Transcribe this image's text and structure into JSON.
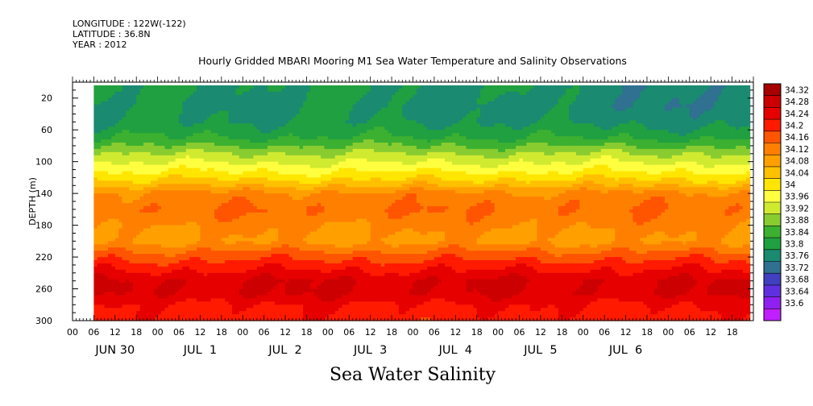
{
  "header": {
    "longitude": "LONGITUDE : 122W(-122)",
    "latitude": "LATITUDE : 36.8N",
    "year": "YEAR : 2012"
  },
  "chart_data": {
    "type": "heatmap",
    "title": "Hourly Gridded MBARI Mooring M1 Sea Water Temperature and Salinity Observations",
    "bottom_title": "Sea Water Salinity",
    "ylabel": "DEPTH (m)",
    "y_range": [
      0,
      300
    ],
    "y_ticks": [
      20,
      60,
      100,
      140,
      180,
      220,
      260,
      300
    ],
    "x_hour_ticks": [
      "00",
      "06",
      "12",
      "18",
      "00",
      "06",
      "12",
      "18",
      "00",
      "06",
      "12",
      "18",
      "00",
      "06",
      "12",
      "18",
      "00",
      "06",
      "12",
      "18",
      "00",
      "06",
      "12",
      "18",
      "00",
      "06",
      "12",
      "18",
      "00",
      "06",
      "12",
      "18"
    ],
    "x_day_labels": [
      "JUN 30",
      "JUL  1",
      "JUL  2",
      "JUL  3",
      "JUL  4",
      "JUL  5",
      "JUL  6"
    ],
    "data_start_hour": 6,
    "data_end_hour": 191,
    "colorbar": {
      "levels": [
        34.32,
        34.28,
        34.24,
        34.2,
        34.16,
        34.12,
        34.08,
        34.04,
        34,
        33.96,
        33.92,
        33.88,
        33.84,
        33.8,
        33.76,
        33.72,
        33.68,
        33.64,
        33.6
      ],
      "colors": [
        "#a60000",
        "#cc0000",
        "#e60000",
        "#ff1a00",
        "#ff5500",
        "#ff8000",
        "#ffa000",
        "#ffc000",
        "#ffe600",
        "#ffff40",
        "#d0ea30",
        "#88cc30",
        "#3cb030",
        "#20a040",
        "#1a8a70",
        "#307090",
        "#4040c0",
        "#6030e0",
        "#9020f0",
        "#c020ff"
      ]
    },
    "depth_profile": [
      {
        "depth": 10,
        "value": 33.8
      },
      {
        "depth": 30,
        "value": 33.79
      },
      {
        "depth": 50,
        "value": 33.8
      },
      {
        "depth": 70,
        "value": 33.84
      },
      {
        "depth": 90,
        "value": 33.92
      },
      {
        "depth": 110,
        "value": 33.99
      },
      {
        "depth": 125,
        "value": 34.05
      },
      {
        "depth": 140,
        "value": 34.13
      },
      {
        "depth": 160,
        "value": 34.16
      },
      {
        "depth": 180,
        "value": 34.13
      },
      {
        "depth": 200,
        "value": 34.11
      },
      {
        "depth": 215,
        "value": 34.17
      },
      {
        "depth": 230,
        "value": 34.22
      },
      {
        "depth": 250,
        "value": 34.28
      },
      {
        "depth": 265,
        "value": 34.28
      },
      {
        "depth": 280,
        "value": 34.24
      },
      {
        "depth": 300,
        "value": 34.22
      }
    ]
  }
}
